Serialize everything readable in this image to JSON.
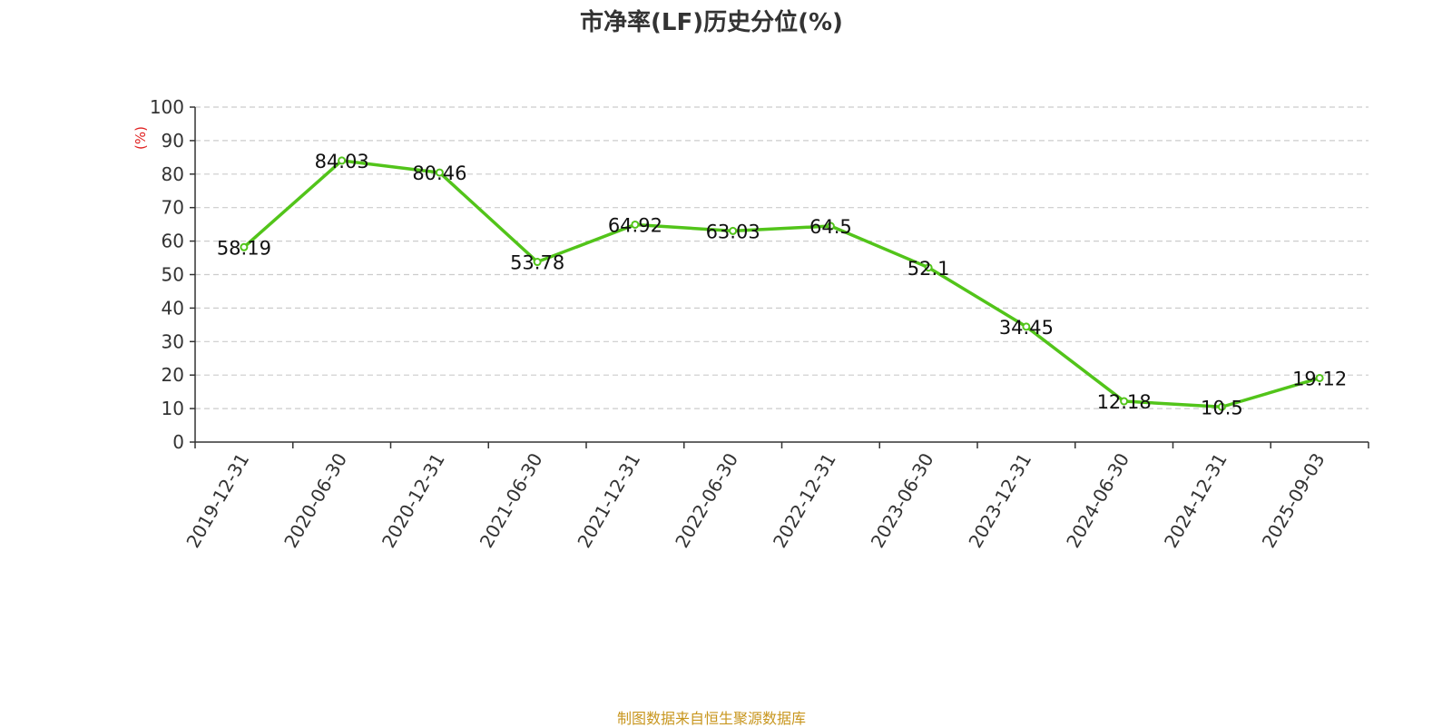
{
  "chart_data": {
    "type": "line",
    "title": "市净率(LF)历史分位(%)",
    "ylabel": "(%)",
    "xlabel": "",
    "categories": [
      "2019-12-31",
      "2020-06-30",
      "2020-12-31",
      "2021-06-30",
      "2021-12-31",
      "2022-06-30",
      "2022-12-31",
      "2023-06-30",
      "2023-12-31",
      "2024-06-30",
      "2024-12-31",
      "2025-09-03"
    ],
    "series": [
      {
        "values": [
          58.19,
          84.03,
          80.46,
          53.78,
          64.92,
          63.03,
          64.5,
          52.1,
          34.45,
          12.18,
          10.5,
          19.12
        ],
        "labels": [
          "58.19",
          "84.03",
          "80.46",
          "53.78",
          "64.92",
          "63.03",
          "64.5",
          "52.1",
          "34.45",
          "12.18",
          "10.5",
          "19.12"
        ],
        "color": "#52c41a"
      }
    ],
    "ylim": [
      0,
      100
    ],
    "yticks": [
      0,
      10,
      20,
      30,
      40,
      50,
      60,
      70,
      80,
      90,
      100
    ],
    "grid": true,
    "gridColor": "#cccccc",
    "axisColor": "#333333"
  },
  "footer": {
    "source": "制图数据来自恒生聚源数据库"
  }
}
